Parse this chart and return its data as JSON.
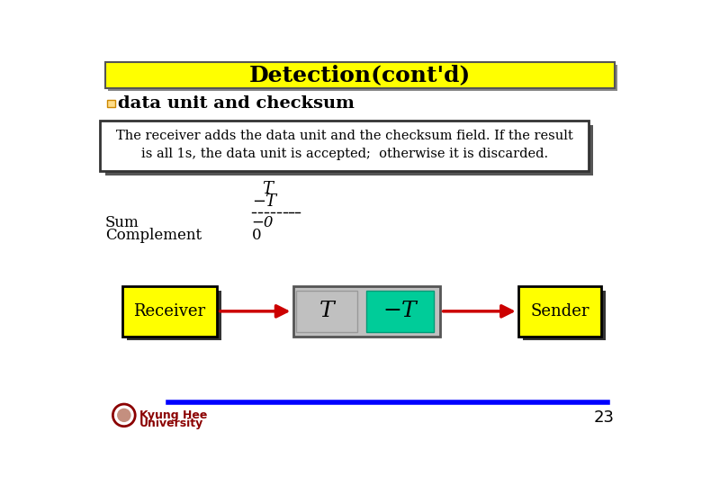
{
  "title": "Detection(cont'd)",
  "title_bg": "#FFFF00",
  "title_color": "#000000",
  "title_fontsize": 18,
  "bullet_text": "data unit and checksum",
  "box_text_line1": "The receiver adds the data unit and the checksum field. If the result",
  "box_text_line2": "is all 1s, the data unit is accepted;  otherwise it is discarded.",
  "math_T": "T",
  "math_negT": "−T",
  "sum_label": "Sum",
  "sum_val": "−0",
  "complement_label": "Complement",
  "complement_val": "0",
  "receiver_label": "Receiver",
  "sender_label": "Sender",
  "T_label": "T",
  "negT_label": "−T",
  "receiver_box_color": "#FFFF00",
  "sender_box_color": "#FFFF00",
  "data_box_color": "#C0C0C0",
  "negT_box_color": "#00CC99",
  "arrow_color": "#CC0000",
  "footer_line_color": "#0000FF",
  "footer_text1": "Kyung Hee",
  "footer_text2": "University",
  "page_number": "23",
  "bg_color": "#FFFFFF"
}
